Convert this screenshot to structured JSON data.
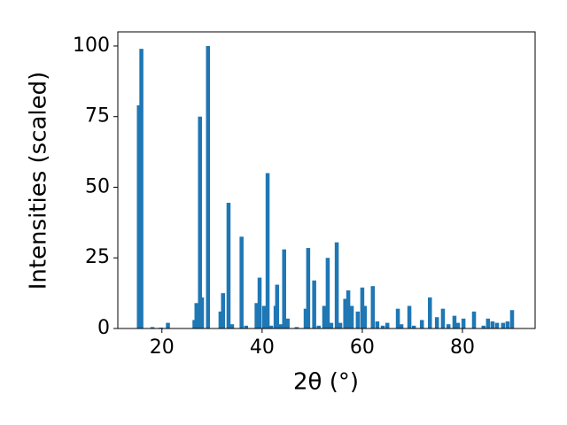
{
  "chart_data": {
    "type": "bar",
    "x_label": "2θ (°)",
    "y_label": "Intensities (scaled)",
    "color": "#1f77b4",
    "xlim": [
      11.2,
      94.5
    ],
    "ylim": [
      0,
      105
    ],
    "xticks": [
      20,
      40,
      60,
      80
    ],
    "yticks": [
      0,
      25,
      50,
      75,
      100
    ],
    "x": [
      15.4,
      15.9,
      18.1,
      19.8,
      21.2,
      26.5,
      26.9,
      27.6,
      28.0,
      29.2,
      31.7,
      32.2,
      33.3,
      34.0,
      35.9,
      36.8,
      38.9,
      39.5,
      40.4,
      41.1,
      41.8,
      42.7,
      43.0,
      43.7,
      44.4,
      45.1,
      46.9,
      48.7,
      49.2,
      50.4,
      51.3,
      52.4,
      53.1,
      53.8,
      54.9,
      55.6,
      56.6,
      57.2,
      57.9,
      59.1,
      60.0,
      60.5,
      62.1,
      63.0,
      64.1,
      65.0,
      67.1,
      67.8,
      69.4,
      70.3,
      71.9,
      73.5,
      74.9,
      76.1,
      77.2,
      78.4,
      79.1,
      80.2,
      82.3,
      84.2,
      85.1,
      86.0,
      86.9,
      88.1,
      89.0,
      89.9
    ],
    "values": [
      79,
      99,
      0.5,
      0.3,
      2,
      3,
      9,
      75,
      11,
      100,
      6,
      12.5,
      44.5,
      1.5,
      32.5,
      1,
      9,
      18,
      8,
      55,
      1,
      8,
      15.5,
      1.5,
      28,
      3.5,
      0.5,
      7,
      28.5,
      17,
      1,
      8,
      25,
      2,
      30.5,
      2,
      10.5,
      13.5,
      8,
      6,
      14.5,
      8,
      15,
      2.5,
      1,
      2,
      7,
      1.5,
      8,
      1,
      3,
      11,
      4,
      7,
      1.5,
      4.5,
      2,
      3.5,
      6,
      1,
      3.5,
      2.5,
      2,
      2,
      2.5,
      6.5
    ]
  }
}
